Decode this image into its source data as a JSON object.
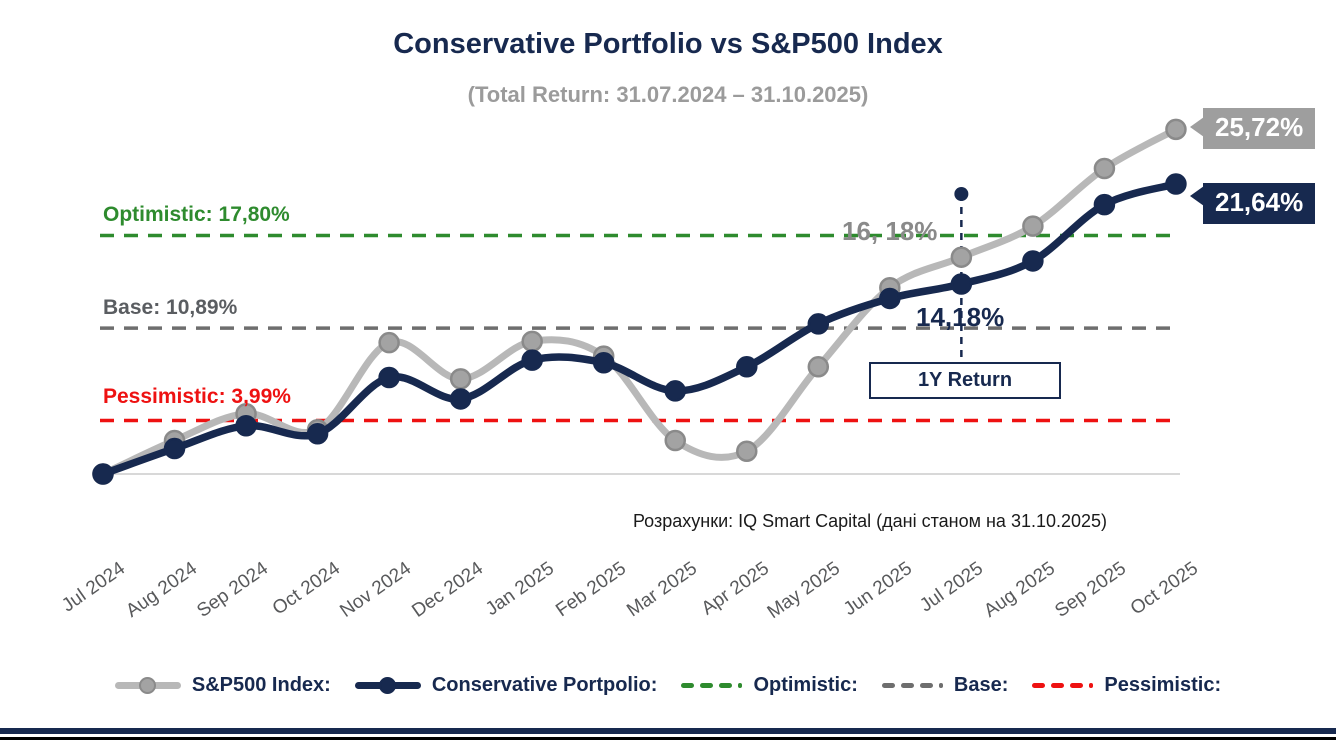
{
  "header": {
    "title": "Conservative Portfolio vs S&P500 Index",
    "subtitle": "(Total Return: 31.07.2024 – 31.10.2025)"
  },
  "colors": {
    "navy": "#17294f",
    "green": "#2e8b2e",
    "red": "#ee1111",
    "gray_line": "#b8b8b8",
    "gray_dash": "#6e6e6e",
    "badge_gray": "#9e9e9e",
    "axis_line": "#d8d8d8"
  },
  "annotations": {
    "sp500_1y_label": "16, 18%",
    "portfolio_1y_label": "14,18%",
    "box_label": "1Y Return",
    "sp500_final_label": "25,72%",
    "portfolio_final_label": "21,64%"
  },
  "footer": {
    "attribution": "Розрахунки: IQ Smart Capital (дані станом на 31.10.2025)"
  },
  "legend": {
    "items": [
      {
        "label": "S&P500 Index:",
        "marker": "line-dot",
        "line_color": "#b8b8b8",
        "dot_fill": "#a3a3a3",
        "dot_stroke": "#8a8a8a"
      },
      {
        "label": "Conservative Portpolio:",
        "marker": "line-dot",
        "line_color": "#17294f",
        "dot_fill": "#17294f",
        "dot_stroke": "#17294f"
      },
      {
        "label": "Optimistic:",
        "marker": "dashes",
        "line_color": "#2e8b2e"
      },
      {
        "label": "Base:",
        "marker": "dashes",
        "line_color": "#6e6e6e"
      },
      {
        "label": "Pessimistic:",
        "marker": "dashes",
        "line_color": "#ee1111"
      }
    ]
  },
  "chart_data": {
    "type": "line",
    "title": "Conservative Portfolio vs S&P500 Index",
    "subtitle": "(Total Return: 31.07.2024 – 31.10.2025)",
    "unit": "%",
    "ylim": [
      -1,
      27
    ],
    "grid": false,
    "legend_position": "bottom",
    "categories": [
      "Jul 2024",
      "Aug 2024",
      "Sep 2024",
      "Oct 2024",
      "Nov 2024",
      "Dec 2024",
      "Jan 2025",
      "Feb 2025",
      "Mar 2025",
      "Apr 2025",
      "May 2025",
      "Jun 2025",
      "Jul 2025",
      "Aug 2025",
      "Sep 2025",
      "Oct 2025"
    ],
    "series": [
      {
        "name": "S&P500 Index",
        "color": "#b8b8b8",
        "marker_fill": "#a3a3a3",
        "marker_stroke": "#8a8a8a",
        "final_value": 25.72,
        "one_year_return": 16.18,
        "values": [
          0.0,
          2.5,
          4.5,
          3.3,
          9.8,
          7.1,
          9.9,
          8.8,
          2.5,
          1.7,
          8.0,
          13.9,
          16.18,
          18.5,
          22.8,
          25.72
        ]
      },
      {
        "name": "Conservative Portfolio",
        "color": "#17294f",
        "marker_fill": "#17294f",
        "marker_stroke": "#17294f",
        "final_value": 21.64,
        "one_year_return": 14.18,
        "values": [
          0.0,
          1.9,
          3.6,
          3.0,
          7.2,
          5.6,
          8.5,
          8.3,
          6.2,
          8.0,
          11.2,
          13.1,
          14.18,
          15.9,
          20.1,
          21.64
        ]
      }
    ],
    "reference_lines": [
      {
        "name": "Optimistic",
        "label": "Optimistic: 17,80%",
        "value": 17.8,
        "color": "#2e8b2e"
      },
      {
        "name": "Base",
        "label": "Base: 10,89%",
        "value": 10.89,
        "color": "#6e6e6e"
      },
      {
        "name": "Pessimistic",
        "label": "Pessimistic: 3,99%",
        "value": 3.99,
        "color": "#ee1111"
      }
    ],
    "annotation": {
      "label": "1Y Return",
      "x_category": "Jul 2025",
      "x_index": 12,
      "sp500_value": "16, 18%",
      "portfolio_value": "14,18%"
    }
  }
}
